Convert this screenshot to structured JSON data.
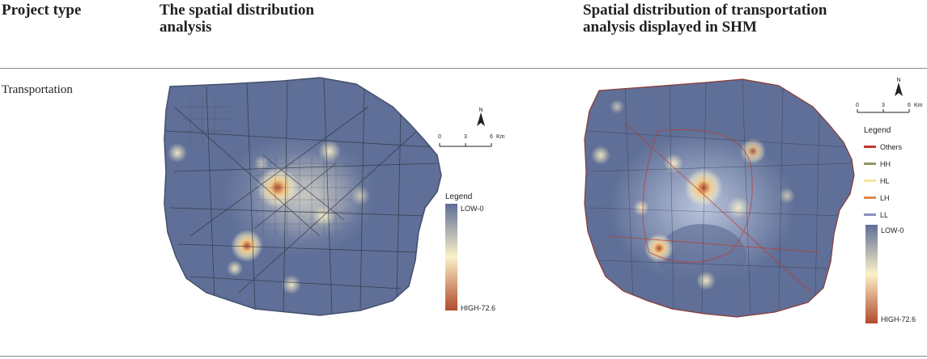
{
  "table": {
    "headers": [
      "Project type",
      "The spatial distribution analysis",
      "Spatial distribution of transportation analysis displayed in SHM"
    ],
    "row_label": "Transportation"
  },
  "left_map": {
    "north_label": "N",
    "scale_ticks": [
      "0",
      "3",
      "6"
    ],
    "scale_unit": "Km",
    "legend_title": "Legend",
    "legend_low": "LOW-0",
    "legend_high": "HIGH-72.6"
  },
  "right_map": {
    "north_label": "N",
    "scale_ticks": [
      "0",
      "3",
      "6"
    ],
    "scale_unit": "Km",
    "legend_title": "Legend",
    "categories": [
      {
        "label": "Others",
        "color": "#c0392b"
      },
      {
        "label": "HH",
        "color": "#8a9a6a"
      },
      {
        "label": "HL",
        "color": "#f3e59a"
      },
      {
        "label": "LH",
        "color": "#e0884a"
      },
      {
        "label": "LL",
        "color": "#8c8fc0"
      }
    ],
    "legend_low": "LOW-0",
    "legend_high": "HIGH-72.6"
  },
  "colors": {
    "map_base": "#5f6f97",
    "ramp_low": "#5e6e96",
    "ramp_mid": "#fbf1c8",
    "ramp_high": "#b24a2d"
  }
}
